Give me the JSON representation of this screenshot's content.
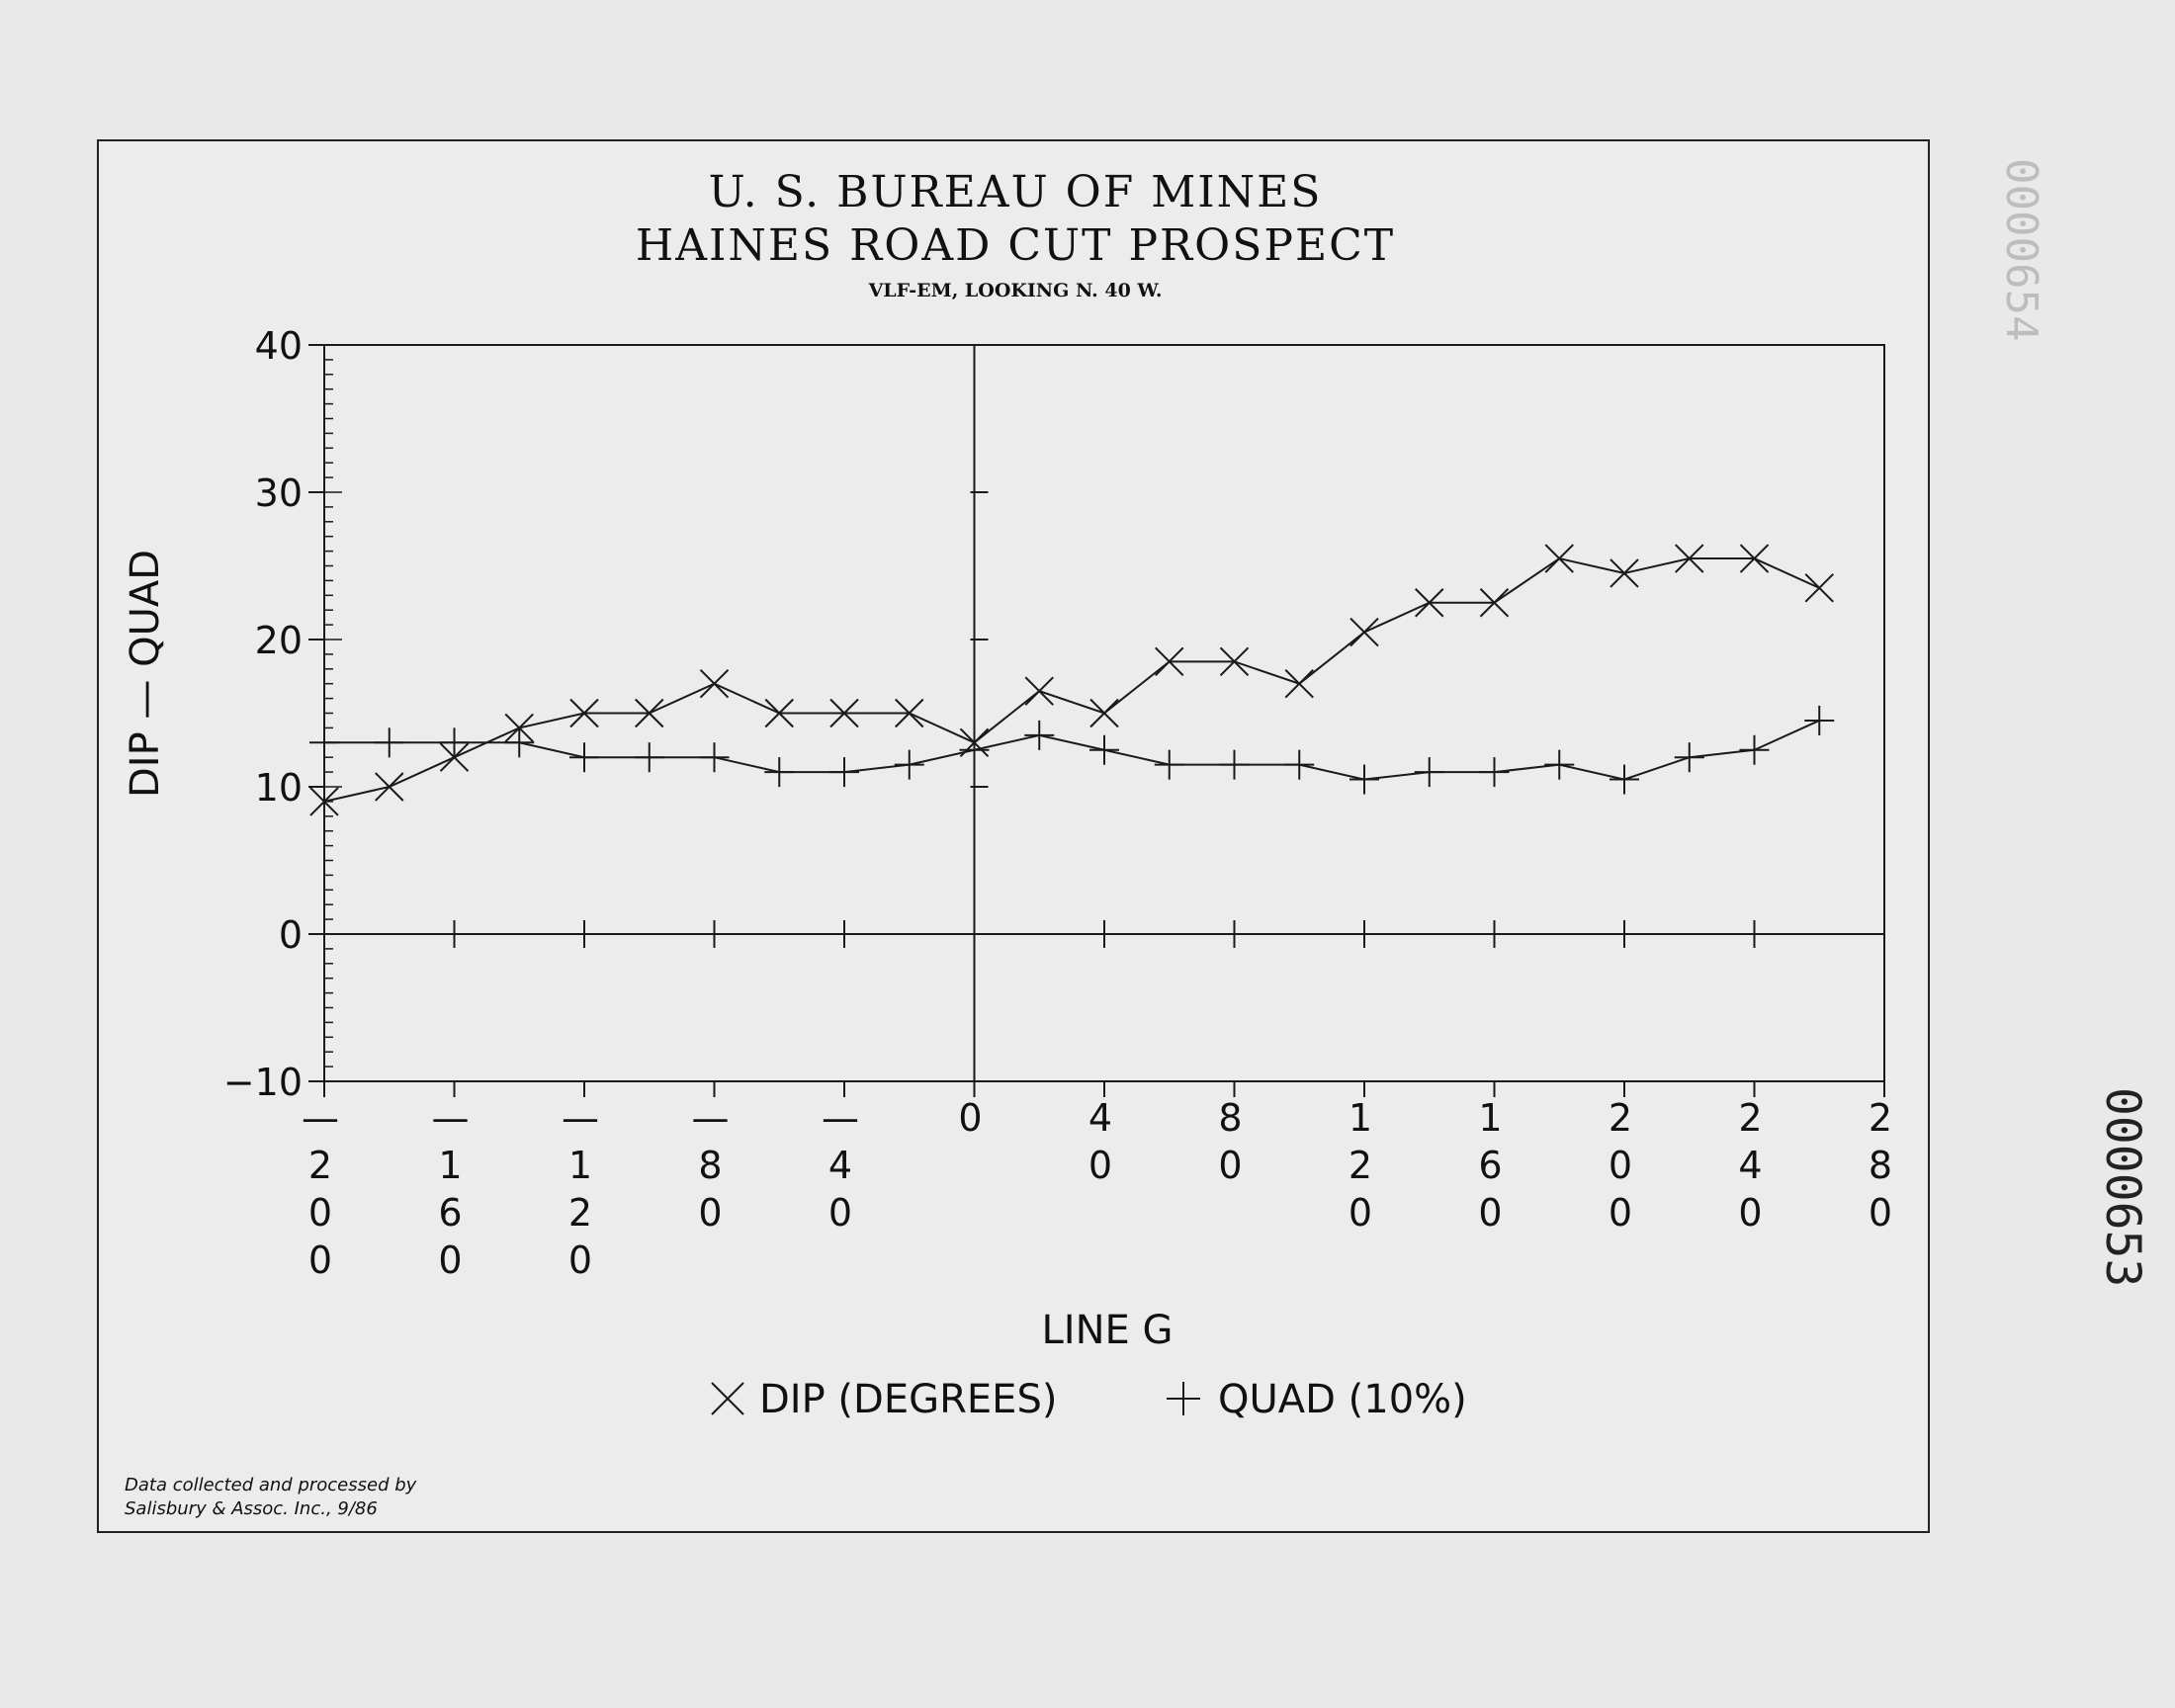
{
  "header": {
    "title": "U. S. BUREAU OF MINES",
    "subtitle": "HAINES ROAD CUT PROSPECT",
    "method": "VLF-EM, LOOKING N. 40 W."
  },
  "credit": {
    "line1": "Data collected and processed by",
    "line2": "Salisbury & Assoc. Inc., 9/86"
  },
  "stamps": {
    "upper": "0000654",
    "lower": "0000653"
  },
  "chart_data": {
    "type": "line",
    "xlabel": "LINE G",
    "ylabel": "DIP - QUAD",
    "xlim": [
      -200,
      280
    ],
    "ylim": [
      -10,
      40
    ],
    "y_ticks": [
      -10,
      0,
      10,
      20,
      30,
      40
    ],
    "x_ticks": [
      -200,
      -160,
      -120,
      -80,
      -40,
      0,
      40,
      80,
      120,
      160,
      200,
      240,
      280
    ],
    "x_tick_labels": [
      "-200",
      "-160",
      "-120",
      "-80",
      "-40",
      "0",
      "40",
      "80",
      "120",
      "160",
      "200",
      "240",
      "280"
    ],
    "series": [
      {
        "name": "DIP (DEGREES)",
        "marker": "x",
        "x": [
          -200,
          -180,
          -160,
          -140,
          -120,
          -100,
          -80,
          -60,
          -40,
          -20,
          0,
          20,
          40,
          60,
          80,
          100,
          120,
          140,
          160,
          180,
          200,
          220,
          240,
          260
        ],
        "y": [
          9,
          10,
          12,
          14,
          15,
          15,
          17,
          15,
          15,
          15,
          13,
          16.5,
          15,
          18.5,
          18.5,
          17,
          20.5,
          22.5,
          22.5,
          25.5,
          24.5,
          25.5,
          25.5,
          23.5
        ]
      },
      {
        "name": "QUAD (10%)",
        "marker": "+",
        "x": [
          -200,
          -180,
          -160,
          -140,
          -120,
          -100,
          -80,
          -60,
          -40,
          -20,
          0,
          20,
          40,
          60,
          80,
          100,
          120,
          140,
          160,
          180,
          200,
          220,
          240,
          260
        ],
        "y": [
          13,
          13,
          13,
          13,
          12,
          12,
          12,
          11,
          11,
          11.5,
          12.5,
          13.5,
          12.5,
          11.5,
          11.5,
          11.5,
          10.5,
          11,
          11,
          11.5,
          10.5,
          12,
          12.5,
          14.5
        ]
      }
    ],
    "zero_line_ticks_x": [
      -160,
      -120,
      -80,
      -40,
      40,
      80,
      120,
      160,
      200,
      240
    ],
    "zero_axis_ticks_y": [
      10,
      20,
      30
    ],
    "grid": false,
    "legend": "bottom-center"
  }
}
